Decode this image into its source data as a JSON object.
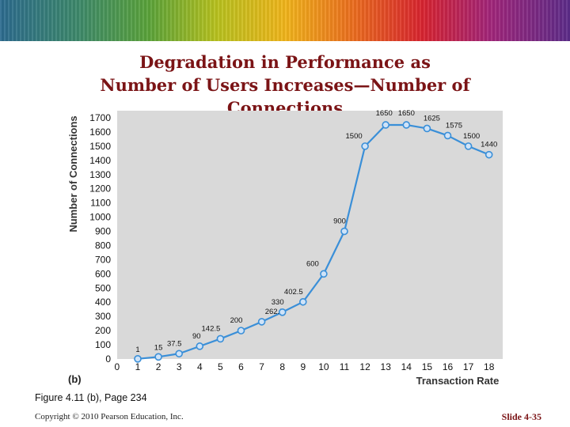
{
  "slide": {
    "title_lines": [
      "Degradation in Performance as",
      "Number of Users Increases—Number of",
      "Connections"
    ],
    "figure_caption": "Figure 4.11 (b), Page 234",
    "copyright": "Copyright © 2010 Pearson Education, Inc.",
    "slide_number": "Slide 4-35"
  },
  "chart_data": {
    "type": "line",
    "panel_label": "(b)",
    "xlabel": "Transaction Rate",
    "ylabel": "Number of Connections",
    "x": [
      1,
      2,
      3,
      4,
      5,
      6,
      7,
      8,
      9,
      10,
      11,
      12,
      13,
      14,
      15,
      16,
      17,
      18
    ],
    "series": [
      {
        "values": [
          1,
          15,
          37.5,
          90,
          142.5,
          200,
          262.5,
          330,
          402.5,
          600,
          900,
          1500,
          1650,
          1650,
          1625,
          1575,
          1500,
          1440
        ]
      }
    ],
    "point_labels": [
      "1",
      "15",
      "37.5",
      "90",
      "142.5",
      "200",
      "262.5",
      "330",
      "402.5",
      "600",
      "900",
      "1500",
      "1650",
      "1650",
      "1625",
      "1575",
      "1500",
      "1440"
    ],
    "xlim": [
      0,
      18
    ],
    "ylim": [
      0,
      1700
    ],
    "x_ticks": [
      "0",
      "1",
      "2",
      "3",
      "4",
      "5",
      "6",
      "7",
      "8",
      "9",
      "10",
      "11",
      "12",
      "13",
      "14",
      "15",
      "16",
      "17",
      "18"
    ],
    "y_ticks": [
      "0",
      "100",
      "200",
      "300",
      "400",
      "500",
      "600",
      "700",
      "800",
      "900",
      "1000",
      "1100",
      "1200",
      "1300",
      "1400",
      "1500",
      "1600",
      "1700"
    ],
    "plot_background": "#d9d9d9",
    "line_color": "#3a8fd8",
    "grid": false
  }
}
